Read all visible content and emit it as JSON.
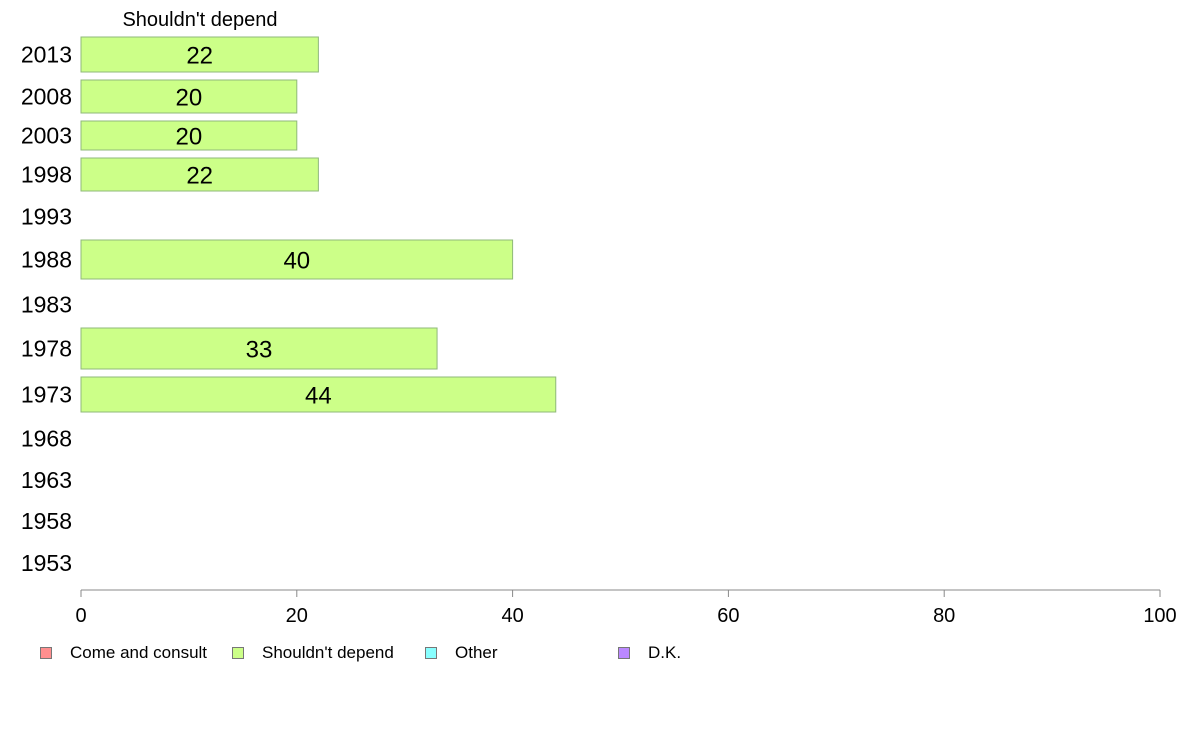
{
  "chart_data": {
    "type": "bar",
    "orientation": "horizontal",
    "title": "Shouldn't depend",
    "categories": [
      "2013",
      "2008",
      "2003",
      "1998",
      "1993",
      "1988",
      "1983",
      "1978",
      "1973",
      "1968",
      "1963",
      "1958",
      "1953"
    ],
    "series": [
      {
        "name": "Shouldn't depend",
        "color": "#ccff88",
        "values": [
          22,
          20,
          20,
          22,
          null,
          40,
          null,
          33,
          44,
          null,
          null,
          null,
          null
        ],
        "labels": [
          "22",
          "20",
          "20",
          "22",
          "",
          "40",
          "",
          "33",
          "44",
          "",
          "",
          "",
          ""
        ]
      }
    ],
    "xlim": [
      0,
      100
    ],
    "xticks": [
      "0",
      "20",
      "40",
      "60",
      "80",
      "100"
    ],
    "legend": {
      "placement": "bottom",
      "items": [
        {
          "label": "Come and consult",
          "color": "#ff8f8f"
        },
        {
          "label": "Shouldn't depend",
          "color": "#ccff88"
        },
        {
          "label": "Other",
          "color": "#88ffff"
        },
        {
          "label": "D.K.",
          "color": "#bb88ff"
        }
      ]
    }
  }
}
